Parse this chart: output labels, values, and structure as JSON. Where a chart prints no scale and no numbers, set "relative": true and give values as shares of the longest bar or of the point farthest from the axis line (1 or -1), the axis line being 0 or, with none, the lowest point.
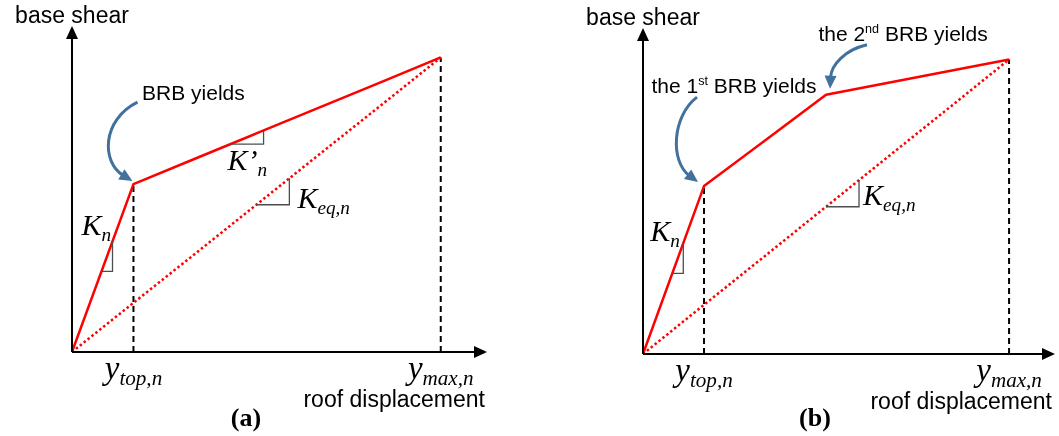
{
  "chart_data": [
    {
      "type": "line",
      "title": "(a)",
      "xlabel": "roof displacement",
      "ylabel": "base shear",
      "relative": true,
      "categories": [
        null,
        "y$_{top,n}$",
        null,
        null,
        null,
        null,
        "y$_{max,n}$"
      ],
      "series": [
        {
          "color": "#ff0000",
          "values": [
            0,
            0.57,
            0.656,
            0.742,
            0.828,
            0.914,
            1
          ],
          "line_style": "solid"
        },
        {
          "color": "#ff0000",
          "values": [
            0,
            0.167,
            0.333,
            0.5,
            0.667,
            0.833,
            1
          ],
          "line_style": "dotted"
        }
      ],
      "ref_lines": [
        {
          "axis": "x",
          "value": "y$_{top,n}$",
          "color": "#000000",
          "line_style": "dashed"
        },
        {
          "axis": "x",
          "value": "y$_{max,n}$",
          "color": "#000000",
          "line_style": "dashed"
        }
      ],
      "annotations": [
        "BRB yields",
        "K$_{n}$",
        "K’$_{n}$",
        "K$_{eq,n}$"
      ]
    },
    {
      "type": "line",
      "title": "(b)",
      "xlabel": "roof displacement",
      "ylabel": "base shear",
      "relative": true,
      "categories": [
        null,
        "y$_{top,n}$",
        null,
        null,
        null,
        null,
        "y$_{max,n}$"
      ],
      "series": [
        {
          "color": "#ff0000",
          "values": [
            0,
            0.57,
            0.725,
            0.88,
            0.92,
            0.96,
            1
          ],
          "line_style": "solid"
        },
        {
          "color": "#ff0000",
          "values": [
            0,
            0.167,
            0.333,
            0.5,
            0.667,
            0.833,
            1
          ],
          "line_style": "dotted"
        }
      ],
      "ref_lines": [
        {
          "axis": "x",
          "value": "y$_{top,n}$",
          "color": "#000000",
          "line_style": "dashed"
        },
        {
          "axis": "x",
          "value": "y$_{max,n}$",
          "color": "#000000",
          "line_style": "dashed"
        }
      ],
      "annotations": [
        "the 1$^{st}$ BRB yields",
        "the 2$^{nd}$ BRB yields",
        "K$_{n}$",
        "K$_{eq,n}$"
      ]
    }
  ]
}
